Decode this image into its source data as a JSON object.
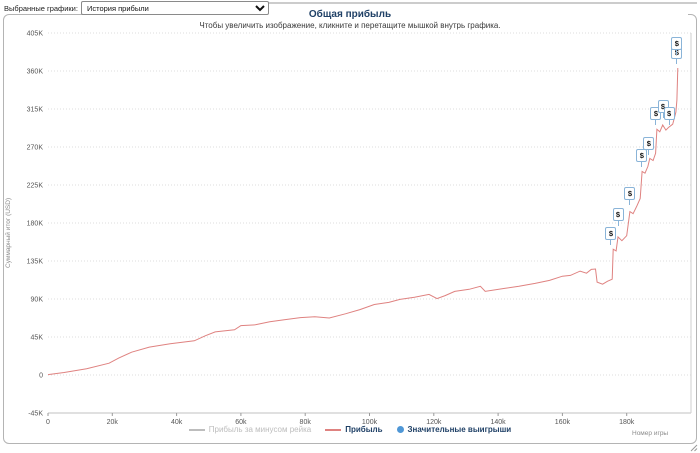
{
  "controls": {
    "label": "Выбранные графики:",
    "selected_option": "История прибыли"
  },
  "chart": {
    "title": "Общая прибыль",
    "subtitle": "Чтобы увеличить изображение, кликните и перетащите мышкой внутрь графика.",
    "y_axis_title": "Суммарный итог (USD)",
    "x_axis_title": "Номер игры"
  },
  "legend": {
    "items": [
      {
        "label": "Прибыль за минусом рейка",
        "marker": "line",
        "color": "#bdbdbd",
        "label_color": "#bdbdbd",
        "bold": false
      },
      {
        "label": "Прибыль",
        "marker": "line",
        "color": "#df8280",
        "label_color": "#1f4066",
        "bold": true
      },
      {
        "label": "Значительные выигрыши",
        "marker": "circle",
        "color": "#4f97d6",
        "label_color": "#1f4066",
        "bold": true
      }
    ]
  },
  "chart_data": {
    "type": "line",
    "title": "Общая прибыль",
    "xlabel": "Номер игры",
    "ylabel": "Суммарный итог (USD)",
    "xlim": [
      0,
      200000
    ],
    "ylim": [
      -45000,
      405000
    ],
    "grid": "horizontal-dotted",
    "legend_position": "bottom-center",
    "x_ticks": [
      "0",
      "20k",
      "40k",
      "60k",
      "80k",
      "100k",
      "120k",
      "140k",
      "160k",
      "180k"
    ],
    "x_tick_values": [
      0,
      20000,
      40000,
      60000,
      80000,
      100000,
      120000,
      140000,
      160000,
      180000
    ],
    "y_ticks": [
      "405K",
      "360K",
      "315K",
      "270K",
      "225K",
      "180K",
      "135K",
      "90K",
      "45K",
      "0",
      "-45K"
    ],
    "y_tick_values": [
      405000,
      360000,
      315000,
      270000,
      225000,
      180000,
      135000,
      90000,
      45000,
      0,
      -45000
    ],
    "series": [
      {
        "name": "Прибыль",
        "color": "#df8280",
        "points": [
          [
            0,
            500
          ],
          [
            5000,
            3000
          ],
          [
            12000,
            7500
          ],
          [
            19000,
            14000
          ],
          [
            22000,
            20000
          ],
          [
            26000,
            27000
          ],
          [
            31500,
            33000
          ],
          [
            38000,
            37000
          ],
          [
            45500,
            40500
          ],
          [
            49000,
            46500
          ],
          [
            52000,
            51000
          ],
          [
            58000,
            53500
          ],
          [
            60000,
            58500
          ],
          [
            64500,
            59500
          ],
          [
            69000,
            63000
          ],
          [
            73500,
            65500
          ],
          [
            78500,
            68000
          ],
          [
            83000,
            69000
          ],
          [
            87500,
            67500
          ],
          [
            92500,
            72500
          ],
          [
            97000,
            77500
          ],
          [
            101500,
            83500
          ],
          [
            106000,
            86000
          ],
          [
            109500,
            89500
          ],
          [
            114000,
            92000
          ],
          [
            118500,
            95500
          ],
          [
            121000,
            90500
          ],
          [
            123500,
            94000
          ],
          [
            126500,
            99000
          ],
          [
            131000,
            101500
          ],
          [
            134500,
            105000
          ],
          [
            136000,
            99000
          ],
          [
            142000,
            102500
          ],
          [
            146500,
            105000
          ],
          [
            151500,
            108500
          ],
          [
            156000,
            112000
          ],
          [
            160000,
            117000
          ],
          [
            162500,
            118000
          ],
          [
            165500,
            123000
          ],
          [
            167500,
            120500
          ],
          [
            169000,
            125000
          ],
          [
            170300,
            125500
          ],
          [
            170800,
            110000
          ],
          [
            172500,
            107500
          ],
          [
            174000,
            111000
          ],
          [
            175500,
            113500
          ],
          [
            175800,
            149000
          ],
          [
            176700,
            147000
          ],
          [
            177300,
            163500
          ],
          [
            178500,
            159000
          ],
          [
            180000,
            165000
          ],
          [
            181000,
            193500
          ],
          [
            182000,
            191000
          ],
          [
            183200,
            200500
          ],
          [
            184200,
            209000
          ],
          [
            184800,
            241000
          ],
          [
            185700,
            239000
          ],
          [
            186600,
            247000
          ],
          [
            187200,
            256500
          ],
          [
            188200,
            254000
          ],
          [
            189000,
            262500
          ],
          [
            189400,
            291000
          ],
          [
            190300,
            288000
          ],
          [
            191200,
            296000
          ],
          [
            192200,
            290000
          ],
          [
            193100,
            293500
          ],
          [
            194300,
            297000
          ],
          [
            195300,
            311500
          ],
          [
            195600,
            325500
          ],
          [
            195900,
            363500
          ]
        ]
      }
    ],
    "hidden_series_label": "Прибыль за минусом рейка",
    "big_wins": {
      "name": "Значительные выигрыши",
      "symbol": "$",
      "positions": [
        [
          175100,
          168000
        ],
        [
          177300,
          190500
        ],
        [
          181000,
          214500
        ],
        [
          184700,
          260500
        ],
        [
          186900,
          274500
        ],
        [
          189100,
          310000
        ],
        [
          191300,
          318500
        ],
        [
          193200,
          310000
        ],
        [
          195600,
          382500
        ],
        [
          195600,
          393000
        ]
      ]
    }
  }
}
